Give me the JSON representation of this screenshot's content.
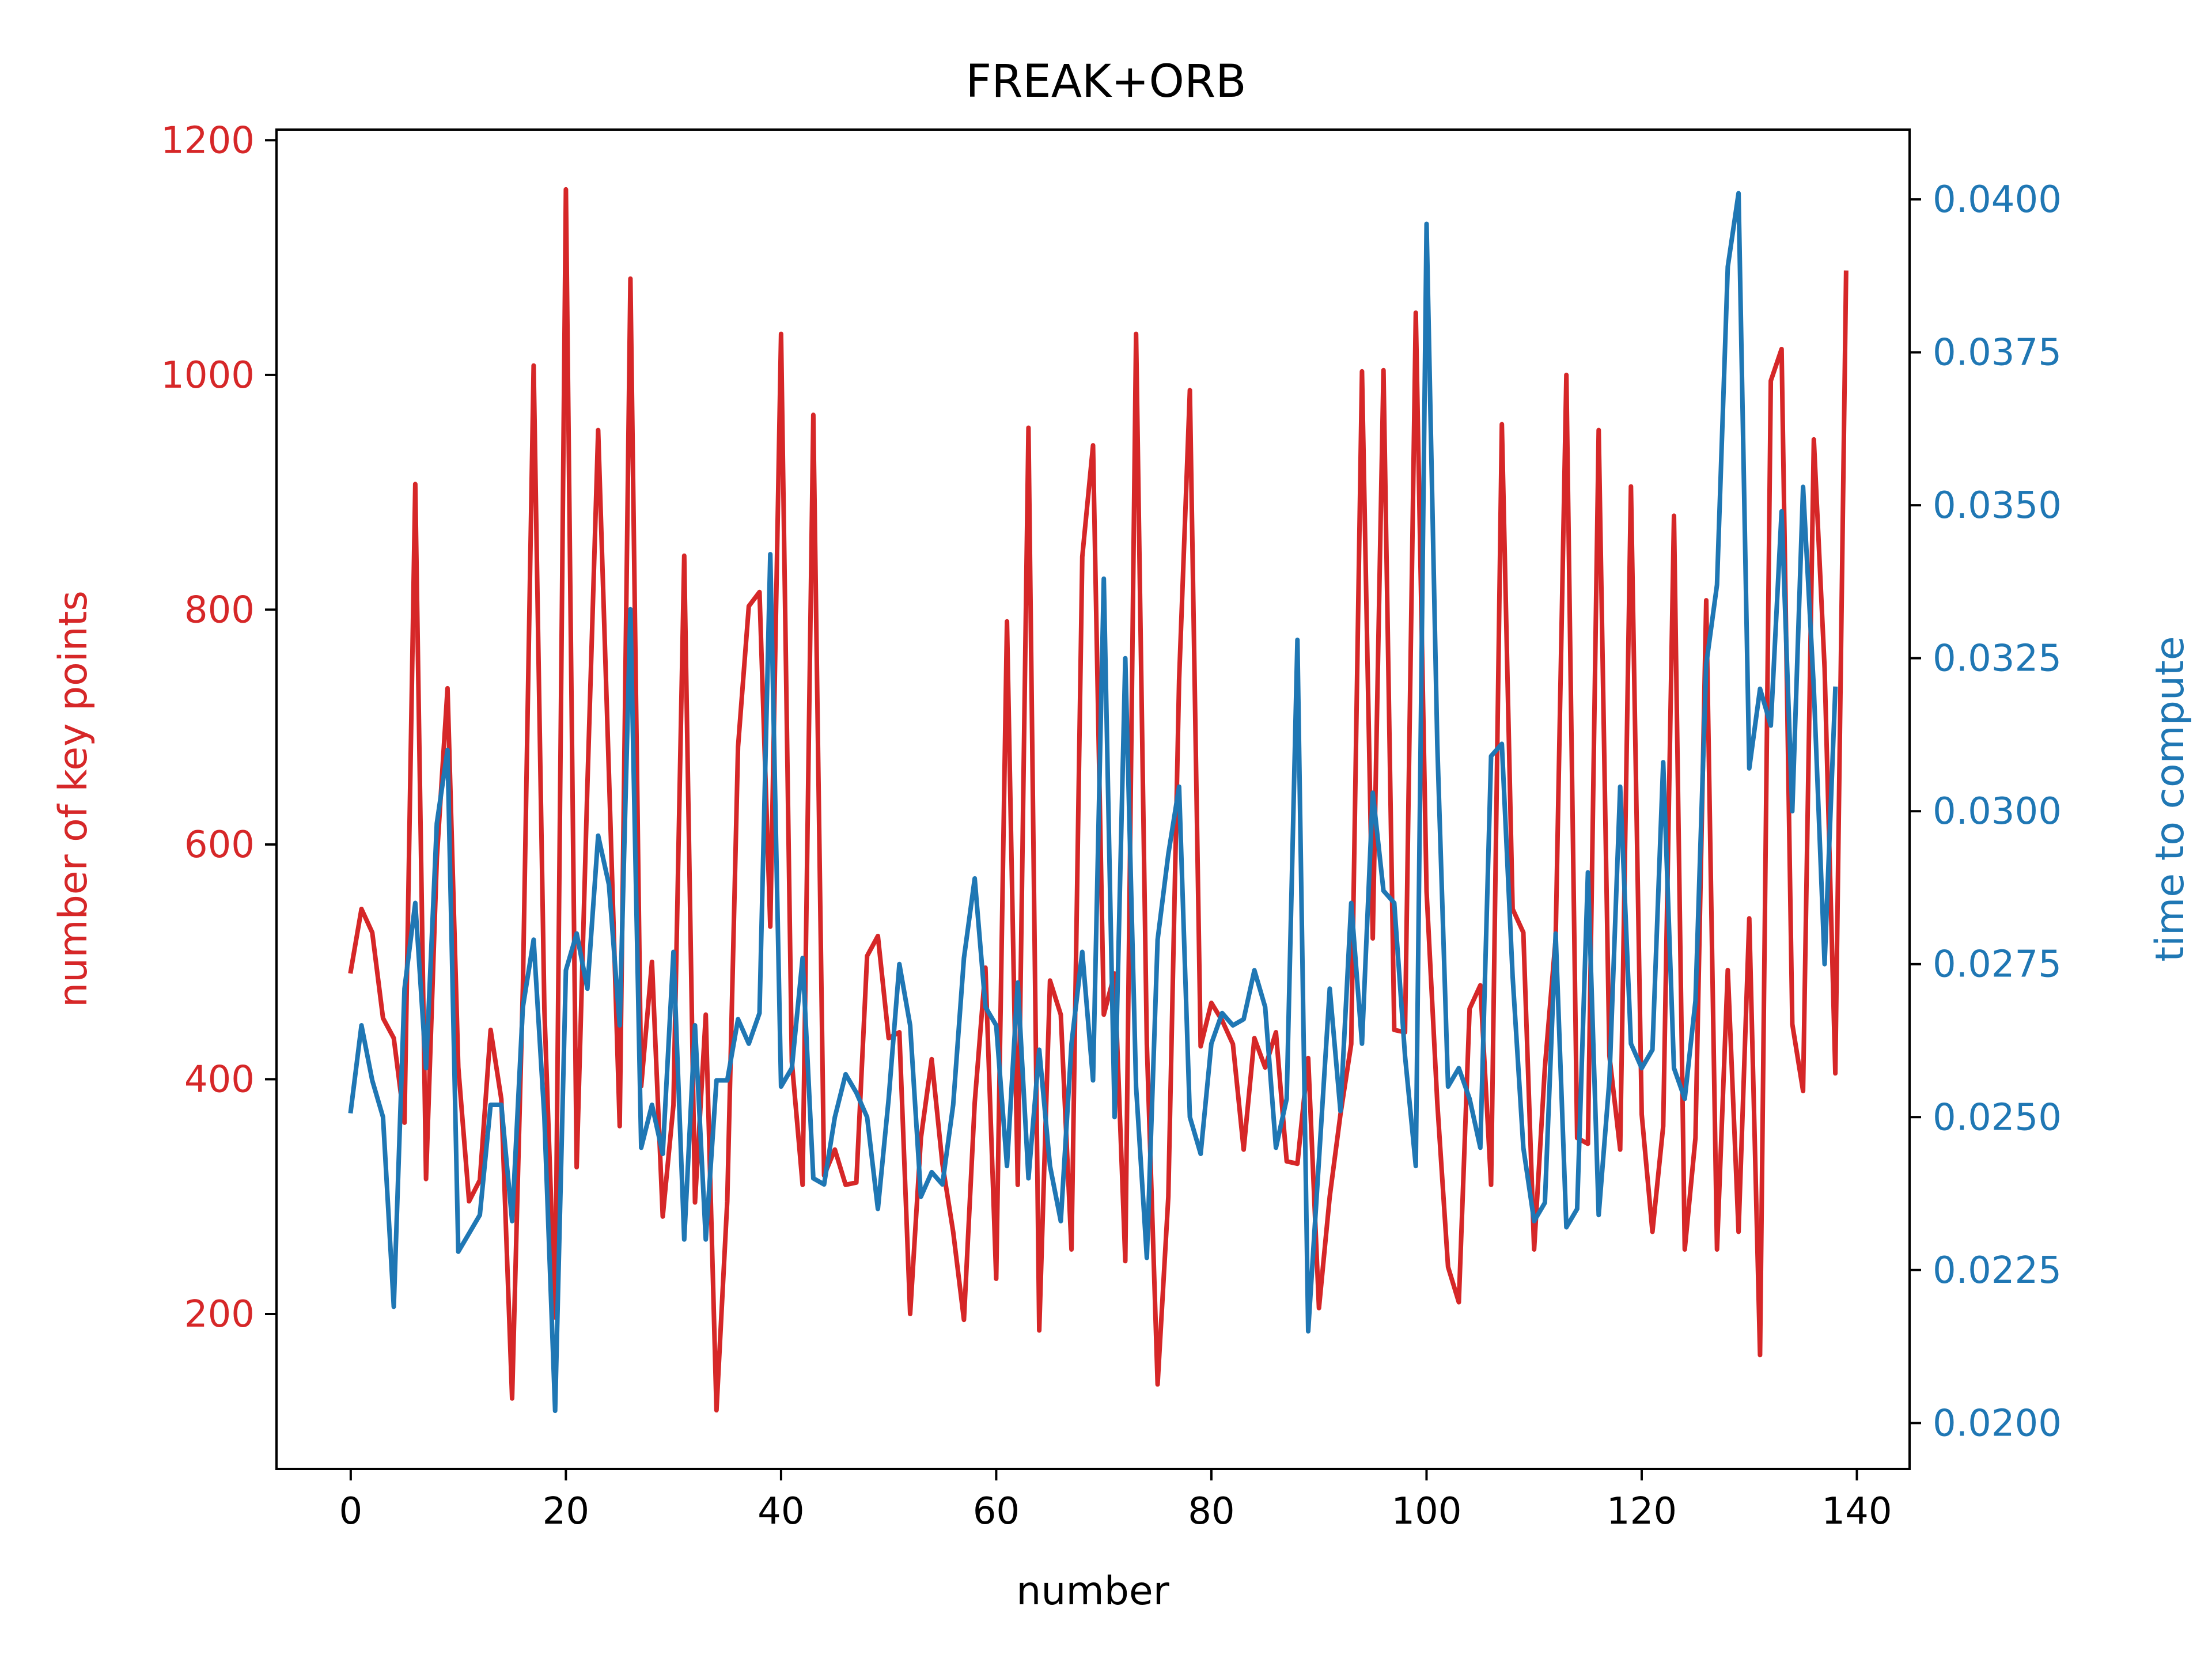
{
  "chart_data": {
    "type": "line",
    "title": "FREAK+ORB",
    "xlabel": "number",
    "xlim": [
      -6.9,
      144.9
    ],
    "xticks": [
      0,
      20,
      40,
      60,
      80,
      100,
      120,
      140
    ],
    "grid": false,
    "left_axis": {
      "label": "number of key points",
      "color": "#d62728",
      "ylim": [
        68,
        1209
      ],
      "ticks": [
        200,
        400,
        600,
        800,
        1000,
        1200
      ]
    },
    "right_axis": {
      "label": "time to compute",
      "color": "#1f77b4",
      "ylim": [
        0.01925,
        0.04114
      ],
      "ticks": [
        0.02,
        0.0225,
        0.025,
        0.0275,
        0.03,
        0.0325,
        0.035,
        0.0375,
        0.04
      ],
      "tick_labels": [
        "0.0200",
        "0.0225",
        "0.0250",
        "0.0275",
        "0.0300",
        "0.0325",
        "0.0350",
        "0.0375",
        "0.0400"
      ]
    },
    "series": [
      {
        "axis": "left",
        "color": "#d62728",
        "values": [
          492,
          545,
          525,
          452,
          435,
          363,
          907,
          315,
          588,
          733,
          410,
          296,
          314,
          442,
          383,
          128,
          478,
          1008,
          460,
          197,
          1158,
          325,
          650,
          953,
          660,
          360,
          1082,
          394,
          500,
          283,
          378,
          846,
          295,
          455,
          118,
          296,
          683,
          803,
          815,
          530,
          1035,
          415,
          310,
          966,
          318,
          340,
          310,
          312,
          505,
          522,
          435,
          440,
          200,
          350,
          417,
          328,
          270,
          195,
          380,
          495,
          230,
          790,
          310,
          955,
          186,
          484,
          455,
          255,
          845,
          940,
          455,
          490,
          245,
          1035,
          430,
          140,
          300,
          740,
          987,
          428,
          465,
          450,
          430,
          340,
          435,
          410,
          440,
          330,
          328,
          418,
          205,
          300,
          370,
          430,
          1003,
          520,
          1004,
          442,
          440,
          1053,
          560,
          380,
          240,
          210,
          460,
          480,
          310,
          958,
          545,
          525,
          255,
          410,
          520,
          1000,
          350,
          345,
          953,
          420,
          340,
          905,
          370,
          270,
          360,
          880,
          255,
          350,
          808,
          255,
          493,
          270,
          537,
          165,
          995,
          1022,
          447,
          390,
          945,
          750,
          405,
          1087
        ]
      },
      {
        "axis": "right",
        "color": "#1f77b4",
        "values": [
          0.0251,
          0.0265,
          0.0256,
          0.025,
          0.0219,
          0.0271,
          0.0285,
          0.0258,
          0.0298,
          0.031,
          0.0228,
          0.0231,
          0.0234,
          0.0252,
          0.0252,
          0.0233,
          0.0268,
          0.0279,
          0.025,
          0.0202,
          0.0274,
          0.028,
          0.0271,
          0.0296,
          0.0288,
          0.0265,
          0.0333,
          0.0245,
          0.0252,
          0.0244,
          0.0277,
          0.023,
          0.0265,
          0.023,
          0.0256,
          0.0256,
          0.0266,
          0.0262,
          0.0267,
          0.0342,
          0.0255,
          0.0258,
          0.0276,
          0.024,
          0.0239,
          0.025,
          0.0257,
          0.0254,
          0.025,
          0.0235,
          0.0253,
          0.0275,
          0.0265,
          0.0237,
          0.0241,
          0.0239,
          0.0252,
          0.0276,
          0.0289,
          0.0268,
          0.0265,
          0.0242,
          0.0272,
          0.024,
          0.0261,
          0.0242,
          0.0233,
          0.0262,
          0.0277,
          0.0256,
          0.0338,
          0.025,
          0.0325,
          0.0255,
          0.0227,
          0.0279,
          0.0293,
          0.0304,
          0.025,
          0.0244,
          0.0262,
          0.0267,
          0.0265,
          0.0266,
          0.0274,
          0.0268,
          0.0245,
          0.0253,
          0.0328,
          0.0215,
          0.0243,
          0.0271,
          0.0251,
          0.0285,
          0.0262,
          0.0303,
          0.0287,
          0.0285,
          0.026,
          0.0242,
          0.0396,
          0.0311,
          0.0255,
          0.0258,
          0.0253,
          0.0245,
          0.0309,
          0.0311,
          0.0273,
          0.0245,
          0.0233,
          0.0236,
          0.028,
          0.0232,
          0.0235,
          0.029,
          0.0234,
          0.0256,
          0.0304,
          0.0262,
          0.0258,
          0.0261,
          0.0308,
          0.0258,
          0.0253,
          0.0269,
          0.0324,
          0.0337,
          0.0389,
          0.0401,
          0.0307,
          0.032,
          0.0314,
          0.0349,
          0.03,
          0.0353,
          0.032,
          0.0275,
          0.032
        ]
      }
    ]
  }
}
